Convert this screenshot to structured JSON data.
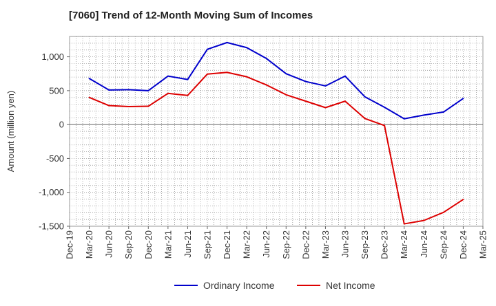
{
  "chart_data": {
    "type": "line",
    "title": "[7060]  Trend of 12-Month Moving Sum of Incomes",
    "xlabel": "",
    "ylabel": "Amount (million yen)",
    "ylim": [
      -1500,
      1300
    ],
    "yticks": [
      1000,
      500,
      0,
      -500,
      -1000,
      -1500
    ],
    "ytick_labels": [
      "1,000",
      "500",
      "0",
      "-500",
      "-1,000",
      "-1,500"
    ],
    "categories": [
      "Dec-19",
      "Mar-20",
      "Jun-20",
      "Sep-20",
      "Dec-20",
      "Mar-21",
      "Jun-21",
      "Sep-21",
      "Dec-21",
      "Mar-22",
      "Jun-22",
      "Sep-22",
      "Dec-22",
      "Mar-23",
      "Jun-23",
      "Sep-23",
      "Dec-23",
      "Mar-24",
      "Jun-24",
      "Sep-24",
      "Dec-24",
      "Mar-25"
    ],
    "grid": true,
    "legend_position": "bottom",
    "series": [
      {
        "name": "Ordinary Income",
        "color": "#0000cc",
        "values": [
          null,
          680,
          510,
          515,
          500,
          715,
          665,
          1110,
          1210,
          1135,
          975,
          750,
          635,
          570,
          715,
          410,
          255,
          85,
          140,
          185,
          385,
          null
        ]
      },
      {
        "name": "Net Income",
        "color": "#dd0000",
        "values": [
          null,
          400,
          280,
          265,
          270,
          460,
          430,
          745,
          770,
          705,
          585,
          440,
          345,
          250,
          345,
          90,
          -15,
          -1465,
          -1415,
          -1295,
          -1105,
          null
        ]
      }
    ]
  }
}
